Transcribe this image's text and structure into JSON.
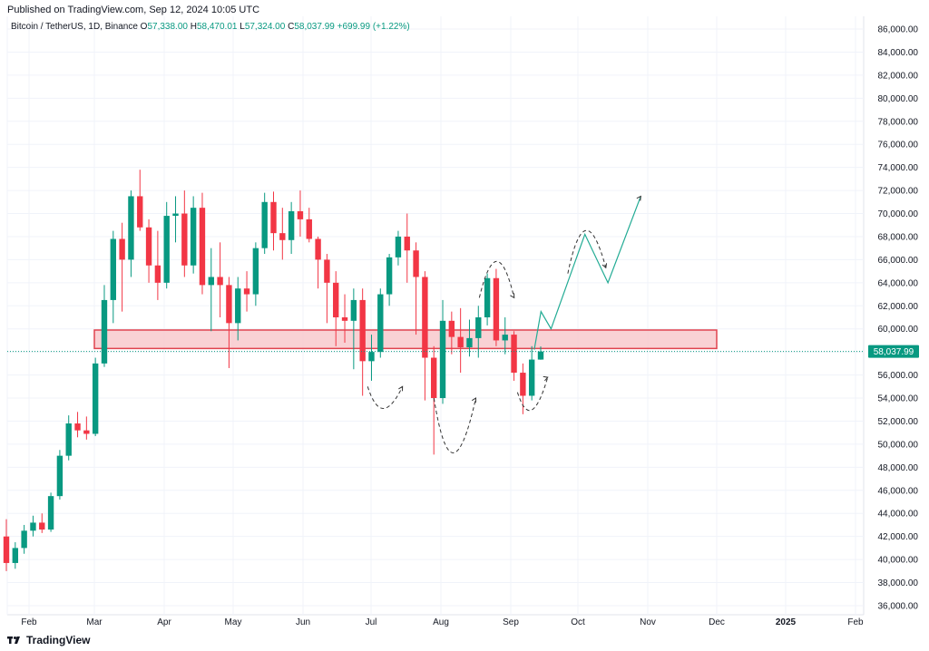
{
  "header": {
    "published": "Published on TradingView.com, Sep 12, 2024 10:05 UTC"
  },
  "legend": {
    "symbol": "Bitcoin / TetherUS, 1D, Binance",
    "open_label": "O",
    "open": "57,338.00",
    "high_label": "H",
    "high": "58,470.01",
    "low_label": "L",
    "low": "57,324.00",
    "close_label": "C",
    "close": "58,037.99",
    "change": "+699.99 (+1.22%)"
  },
  "footer": {
    "brand": "TradingView"
  },
  "colors": {
    "up": "#089981",
    "down": "#f23645",
    "zone_fill": "#f8c9cd",
    "zone_stroke": "#e0434f",
    "grid": "#f0f3fa",
    "projection": "#22ab94"
  },
  "chart_data": {
    "type": "candlestick",
    "y_axis": {
      "min": 36000,
      "max": 86000,
      "ticks": [
        "86,000.00",
        "84,000.00",
        "82,000.00",
        "80,000.00",
        "78,000.00",
        "76,000.00",
        "74,000.00",
        "72,000.00",
        "70,000.00",
        "68,000.00",
        "66,000.00",
        "64,000.00",
        "62,000.00",
        "60,000.00",
        "58,000.00",
        "56,000.00",
        "54,000.00",
        "52,000.00",
        "50,000.00",
        "48,000.00",
        "46,000.00",
        "44,000.00",
        "42,000.00",
        "40,000.00",
        "38,000.00",
        "36,000.00"
      ]
    },
    "x_axis": {
      "labels": [
        "Feb",
        "Mar",
        "Apr",
        "May",
        "Jun",
        "Jul",
        "Aug",
        "Sep",
        "Oct",
        "Nov",
        "Dec",
        "2025",
        "Feb"
      ]
    },
    "last_price": {
      "value": 58037.99,
      "label": "58,037.99"
    },
    "zone": {
      "from_month": 2.0,
      "to_month": 11.0,
      "low": 58300,
      "high": 59900
    },
    "candles": [
      [
        42000,
        43500,
        39000,
        39700
      ],
      [
        39700,
        41500,
        39200,
        41000
      ],
      [
        41000,
        43000,
        40500,
        42500
      ],
      [
        42500,
        43800,
        42000,
        43200
      ],
      [
        43200,
        44000,
        42300,
        42600
      ],
      [
        42600,
        45800,
        42400,
        45500
      ],
      [
        45500,
        49500,
        45200,
        49000
      ],
      [
        49000,
        52500,
        48600,
        51800
      ],
      [
        51800,
        52800,
        50600,
        51200
      ],
      [
        51200,
        52400,
        50400,
        50900
      ],
      [
        50900,
        57500,
        50700,
        57000
      ],
      [
        57000,
        63800,
        56700,
        62500
      ],
      [
        62500,
        68500,
        60500,
        67800
      ],
      [
        67800,
        69200,
        61500,
        66000
      ],
      [
        66000,
        72000,
        64500,
        71500
      ],
      [
        71500,
        73800,
        68500,
        68800
      ],
      [
        68800,
        69500,
        64000,
        65500
      ],
      [
        65500,
        68500,
        62500,
        64000
      ],
      [
        64000,
        71000,
        63500,
        69800
      ],
      [
        69800,
        71500,
        67500,
        70000
      ],
      [
        70000,
        72000,
        64500,
        65500
      ],
      [
        65500,
        71500,
        64800,
        70500
      ],
      [
        70500,
        71800,
        63000,
        63800
      ],
      [
        63800,
        67000,
        59800,
        64500
      ],
      [
        64500,
        67500,
        61000,
        63800
      ],
      [
        63800,
        64500,
        56600,
        60500
      ],
      [
        60500,
        64500,
        59000,
        63500
      ],
      [
        63500,
        65000,
        61500,
        63000
      ],
      [
        63000,
        67500,
        62000,
        67000
      ],
      [
        67000,
        71800,
        66500,
        71000
      ],
      [
        71000,
        71900,
        66800,
        68300
      ],
      [
        68300,
        70500,
        66000,
        67700
      ],
      [
        67700,
        71000,
        66500,
        70200
      ],
      [
        70200,
        72000,
        68000,
        69500
      ],
      [
        69500,
        70500,
        67500,
        67800
      ],
      [
        67800,
        68000,
        63500,
        66000
      ],
      [
        66000,
        66500,
        60500,
        64000
      ],
      [
        64000,
        65000,
        58500,
        61000
      ],
      [
        61000,
        63000,
        58800,
        60700
      ],
      [
        60700,
        63500,
        56500,
        62500
      ],
      [
        62500,
        63500,
        54200,
        57200
      ],
      [
        57200,
        59500,
        55500,
        58000
      ],
      [
        58000,
        63500,
        57500,
        63000
      ],
      [
        63000,
        66500,
        62000,
        66200
      ],
      [
        66200,
        68500,
        65500,
        68000
      ],
      [
        68000,
        70000,
        64000,
        66800
      ],
      [
        66800,
        67500,
        59500,
        64500
      ],
      [
        64500,
        65000,
        53800,
        57500
      ],
      [
        57500,
        58500,
        49100,
        54000
      ],
      [
        54000,
        62500,
        53500,
        60700
      ],
      [
        60700,
        61500,
        57800,
        59300
      ],
      [
        59300,
        61800,
        56200,
        58400
      ],
      [
        58400,
        60800,
        57600,
        59200
      ],
      [
        59200,
        62000,
        57500,
        61000
      ],
      [
        61000,
        64800,
        60300,
        64400
      ],
      [
        64400,
        65200,
        58500,
        59000
      ],
      [
        59000,
        61000,
        57800,
        59500
      ],
      [
        59500,
        59800,
        55500,
        56200
      ],
      [
        56200,
        57000,
        52600,
        54200
      ],
      [
        54200,
        58500,
        53800,
        57338
      ],
      [
        57338,
        58470,
        57324,
        58037.99
      ]
    ],
    "annotations": {
      "projection_price_path": [
        58200,
        61500,
        60000,
        68200,
        64000,
        71500
      ]
    }
  }
}
